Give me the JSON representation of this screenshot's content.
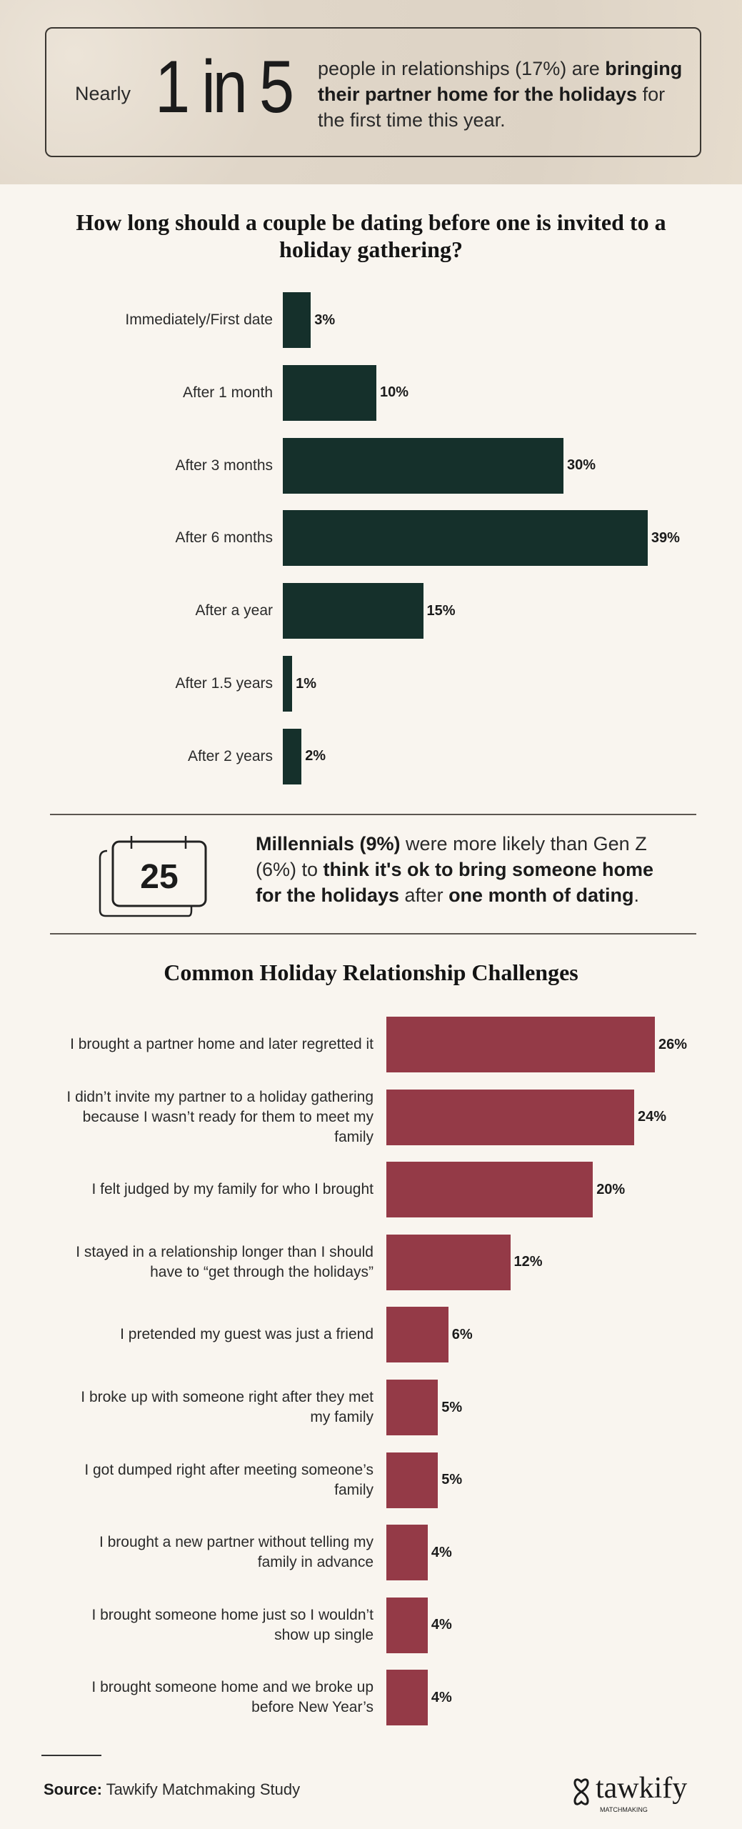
{
  "hero": {
    "prefix": "Nearly",
    "stat": "1 in 5",
    "text_1": "people in relationships (17%) are ",
    "text_bold": "bringing their partner home for the holidays",
    "text_2": " for the first time this year."
  },
  "chart_data": [
    {
      "type": "bar",
      "orientation": "horizontal",
      "title": "How long should a couple be dating before one is invited to a holiday gathering?",
      "color": "#15302b",
      "categories": [
        "Immediately/First date",
        "After 1 month",
        "After 3 months",
        "After 6 months",
        "After a year",
        "After 1.5 years",
        "After 2 years"
      ],
      "values": [
        3,
        10,
        30,
        39,
        15,
        1,
        2
      ],
      "labels": [
        "3%",
        "10%",
        "30%",
        "39%",
        "15%",
        "1%",
        "2%"
      ]
    },
    {
      "type": "bar",
      "orientation": "horizontal",
      "title": "Common Holiday Relationship Challenges",
      "color": "#943a47",
      "categories": [
        "I brought a partner home and later regretted it",
        "I didn’t invite my partner to a holiday gathering because I wasn’t ready for them to meet my family",
        "I felt judged by my family for who I brought",
        "I stayed in a relationship longer than I should have to “get through the holidays”",
        "I pretended my guest was just a friend",
        "I broke up with someone right after they met my family",
        "I got dumped right after meeting someone’s family",
        "I brought a new partner without telling my family in advance",
        "I brought someone home just so I wouldn’t show up single",
        "I brought someone home and we broke up before New Year’s"
      ],
      "values": [
        26,
        24,
        20,
        12,
        6,
        5,
        5,
        4,
        4,
        4
      ],
      "labels": [
        "26%",
        "24%",
        "20%",
        "12%",
        "6%",
        "5%",
        "5%",
        "4%",
        "4%",
        "4%"
      ]
    }
  ],
  "callout": {
    "calendar_number": "25",
    "b1": "Millennials (9%)",
    "t1": " were more likely than Gen Z (6%) to ",
    "b2": "think it's ok to bring someone home for the holidays",
    "t2": " after ",
    "b3": "one month of dating",
    "t3": "."
  },
  "footer": {
    "source_label": "Source:",
    "source_text": " Tawkify Matchmaking Study",
    "logo": "tawkify",
    "logo_sub": "MATCHMAKING"
  }
}
